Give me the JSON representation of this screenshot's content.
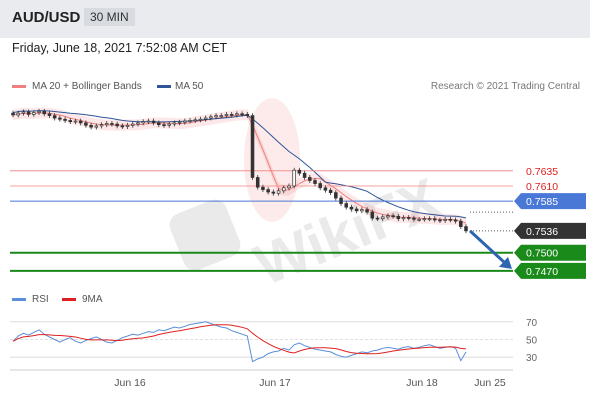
{
  "header": {
    "pair": "AUD/USD",
    "timeframe": "30 MIN"
  },
  "datetime": "Friday, June 18, 2021 7:52:08 AM CET",
  "legend": {
    "ma20": "MA 20 + Bollinger Bands",
    "ma50": "MA 50",
    "rsi": "RSI",
    "ma9": "9MA",
    "copyright": "Research © 2021 Trading Central"
  },
  "watermark": "WikiFX",
  "colors": {
    "ma20": "#f08080",
    "ma50": "#2f5597",
    "rsi": "#5b8fd9",
    "ma9": "#e02020",
    "support": "#1a8a1a",
    "resistance": "#f08080",
    "pivot": "#4a78d6",
    "last": "#333333",
    "arrow": "#2f64b0"
  },
  "chart_data": {
    "type": "candlestick",
    "x_ticks": [
      "Jun 16",
      "Jun 17",
      "Jun 18",
      "Jun 25"
    ],
    "price_levels": [
      {
        "label": "0.7635",
        "value": 0.7635,
        "kind": "resistance"
      },
      {
        "label": "0.7610",
        "value": 0.761,
        "kind": "resistance"
      },
      {
        "label": "0.7585",
        "value": 0.7585,
        "kind": "pivot"
      },
      {
        "label": "0.7536",
        "value": 0.7536,
        "kind": "last"
      },
      {
        "label": "0.7500",
        "value": 0.75,
        "kind": "support"
      },
      {
        "label": "0.7470",
        "value": 0.747,
        "kind": "support"
      }
    ],
    "price_close": [
      0.7727,
      0.773,
      0.7732,
      0.7728,
      0.7731,
      0.7733,
      0.7729,
      0.7726,
      0.7722,
      0.772,
      0.7718,
      0.7716,
      0.7717,
      0.7714,
      0.771,
      0.7707,
      0.7709,
      0.7711,
      0.7713,
      0.7712,
      0.7709,
      0.7708,
      0.771,
      0.7712,
      0.7714,
      0.7716,
      0.7717,
      0.7714,
      0.7711,
      0.771,
      0.7712,
      0.7714,
      0.7715,
      0.7717,
      0.7718,
      0.7719,
      0.772,
      0.7722,
      0.7724,
      0.7726,
      0.7726,
      0.7728,
      0.7727,
      0.7729,
      0.7728,
      0.7726,
      0.7624,
      0.7608,
      0.7604,
      0.76,
      0.7598,
      0.7602,
      0.7607,
      0.761,
      0.7636,
      0.7631,
      0.7624,
      0.7619,
      0.7614,
      0.7607,
      0.7603,
      0.7599,
      0.759,
      0.7581,
      0.7575,
      0.7572,
      0.7569,
      0.7571,
      0.7567,
      0.7557,
      0.7556,
      0.7559,
      0.7561,
      0.756,
      0.7556,
      0.7558,
      0.7557,
      0.7555,
      0.7555,
      0.7556,
      0.7556,
      0.7554,
      0.7553,
      0.7555,
      0.7554,
      0.7552,
      0.7543,
      0.7536
    ],
    "rsi": [
      48,
      54,
      57,
      55,
      58,
      61,
      56,
      53,
      50,
      47,
      50,
      52,
      48,
      46,
      49,
      51,
      53,
      50,
      47,
      46,
      49,
      52,
      54,
      56,
      55,
      57,
      59,
      58,
      61,
      60,
      62,
      64,
      63,
      65,
      67,
      68,
      69,
      70,
      68,
      66,
      64,
      63,
      60,
      58,
      56,
      54,
      25,
      28,
      30,
      34,
      36,
      37,
      40,
      38,
      44,
      46,
      43,
      41,
      39,
      38,
      37,
      36,
      33,
      31,
      30,
      32,
      34,
      36,
      35,
      37,
      38,
      40,
      41,
      40,
      39,
      41,
      42,
      40,
      41,
      43,
      44,
      42,
      40,
      41,
      42,
      40,
      26,
      36
    ],
    "rsi_ticks": [
      70,
      50,
      30
    ],
    "price_ylim": [
      0.7455,
      0.7755
    ],
    "rsi_ylim": [
      20,
      80
    ],
    "projection": {
      "from": 0.7536,
      "to": 0.747
    }
  }
}
